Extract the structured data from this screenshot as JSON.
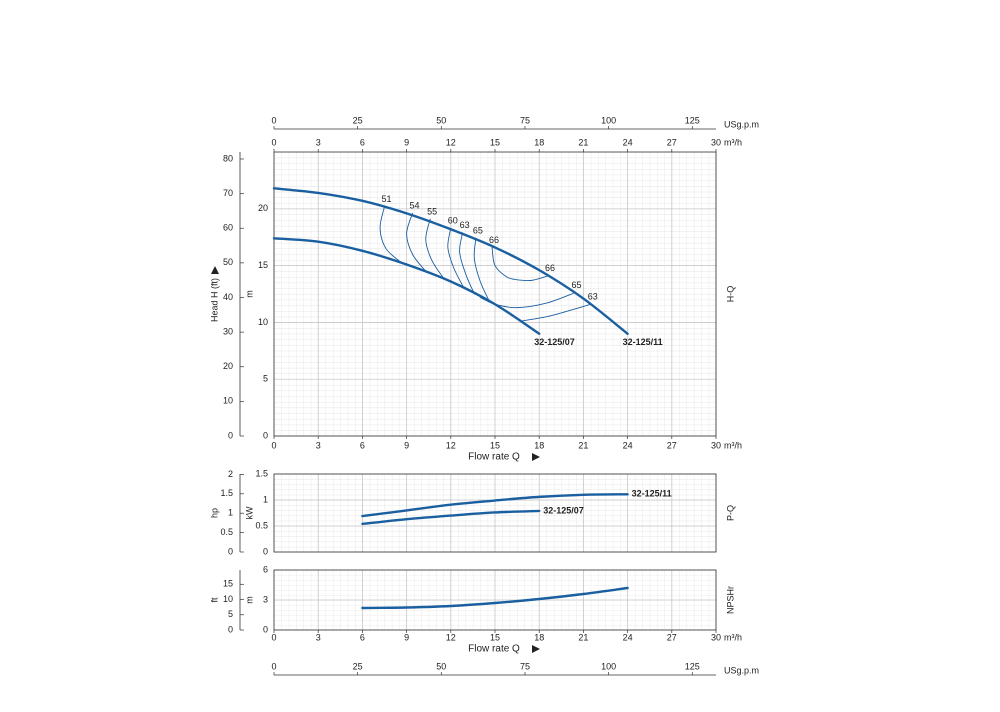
{
  "chart_data": [
    {
      "type": "line",
      "side_label": "H-Q",
      "x_label": "Flow rate Q",
      "x_unit": "m³/h",
      "xlim": [
        0,
        30
      ],
      "xticks": [
        0,
        3,
        6,
        9,
        12,
        15,
        18,
        21,
        24,
        27,
        30
      ],
      "x2_unit": "USg.p.m",
      "x2lim": [
        0,
        132.09
      ],
      "x2ticks": [
        0,
        25,
        50,
        75,
        100,
        125
      ],
      "y_label": "m",
      "ylim": [
        0,
        25
      ],
      "yticks": [
        0,
        5,
        10,
        15,
        20
      ],
      "y2_label": "Head H (ft)",
      "y2lim": [
        0,
        82.02
      ],
      "y2ticks": [
        0,
        10,
        20,
        30,
        40,
        50,
        60,
        70,
        80
      ],
      "grid": true,
      "series": [
        {
          "name": "32-125/11",
          "color": "#1a5fa0",
          "x": [
            0,
            3,
            6,
            9,
            12,
            15,
            18,
            21,
            24
          ],
          "values": [
            21.8,
            21.4,
            20.7,
            19.6,
            18.2,
            16.6,
            14.6,
            12.1,
            9.0
          ]
        },
        {
          "name": "32-125/07",
          "color": "#1a5fa0",
          "x": [
            0,
            3,
            6,
            9,
            12,
            15,
            18
          ],
          "values": [
            17.4,
            17.1,
            16.3,
            15.1,
            13.6,
            11.6,
            9.0
          ]
        }
      ],
      "efficiency_curves": [
        {
          "label": "51",
          "color": "#1a5fa0",
          "x": [
            7.5,
            7.2,
            7.6,
            8.7
          ],
          "values": [
            20.2,
            18.3,
            16.5,
            15.2
          ]
        },
        {
          "label": "54",
          "color": "#1a5fa0",
          "x": [
            9.4,
            9.0,
            9.4,
            10.3
          ],
          "values": [
            19.6,
            17.8,
            16.0,
            14.5
          ]
        },
        {
          "label": "55",
          "color": "#1a5fa0",
          "x": [
            10.6,
            10.3,
            10.7,
            11.5
          ],
          "values": [
            19.1,
            17.3,
            15.5,
            13.9
          ]
        },
        {
          "label": "60",
          "color": "#1a5fa0",
          "x": [
            12.0,
            11.8,
            12.2,
            12.9
          ],
          "values": [
            18.3,
            16.6,
            14.8,
            13.0
          ]
        },
        {
          "label": "63",
          "color": "#1a5fa0",
          "x": [
            12.8,
            12.6,
            13.0,
            13.6
          ],
          "values": [
            17.9,
            16.2,
            14.3,
            12.5
          ]
        },
        {
          "label": "65",
          "color": "#1a5fa0",
          "x": [
            13.7,
            13.6,
            14.0,
            14.6
          ],
          "values": [
            17.4,
            15.6,
            13.6,
            11.9
          ]
        },
        {
          "label": "66",
          "color": "#1a5fa0",
          "x": [
            14.8,
            15.0,
            15.8,
            16.5
          ],
          "values": [
            16.6,
            15.0,
            14.0,
            13.75
          ]
        },
        {
          "label": "66",
          "color": "#1a5fa0",
          "x": [
            16.5,
            17.5,
            18.6
          ],
          "values": [
            13.75,
            13.7,
            14.1
          ]
        },
        {
          "label": "65",
          "color": "#1a5fa0",
          "x": [
            14.0,
            15.0,
            16.5,
            18.5,
            20.4
          ],
          "values": [
            12.2,
            11.6,
            11.3,
            11.7,
            12.6
          ]
        },
        {
          "label": "63",
          "color": "#1a5fa0",
          "x": [
            16.7,
            18.5,
            20.2,
            21.5
          ],
          "values": [
            10.1,
            10.5,
            11.1,
            11.6
          ]
        }
      ]
    },
    {
      "type": "line",
      "side_label": "P-Q",
      "xlim": [
        0,
        30
      ],
      "xticks": [
        0,
        3,
        6,
        9,
        12,
        15,
        18,
        21,
        24,
        27,
        30
      ],
      "y_label": "kW",
      "ylim": [
        0,
        1.5
      ],
      "yticks": [
        0,
        0.5,
        1,
        1.5
      ],
      "y2_label": "hp",
      "y2lim": [
        0,
        2.01
      ],
      "y2ticks": [
        0,
        0.5,
        1,
        1.5,
        2
      ],
      "grid": true,
      "series": [
        {
          "name": "32-125/11",
          "color": "#1a5fa0",
          "x": [
            6,
            9,
            12,
            15,
            18,
            21,
            24
          ],
          "values": [
            0.69,
            0.8,
            0.91,
            0.99,
            1.06,
            1.1,
            1.11
          ]
        },
        {
          "name": "32-125/07",
          "color": "#1a5fa0",
          "x": [
            6,
            9,
            12,
            15,
            18
          ],
          "values": [
            0.54,
            0.63,
            0.7,
            0.76,
            0.79
          ]
        }
      ]
    },
    {
      "type": "line",
      "side_label": "NPSHr",
      "x_label": "Flow rate Q",
      "x_unit": "m³/h",
      "xlim": [
        0,
        30
      ],
      "xticks": [
        0,
        3,
        6,
        9,
        12,
        15,
        18,
        21,
        24,
        27,
        30
      ],
      "x2_unit": "USg.p.m",
      "x2lim": [
        0,
        132.09
      ],
      "x2ticks": [
        0,
        25,
        50,
        75,
        100,
        125
      ],
      "y_label": "m",
      "ylim": [
        0,
        6
      ],
      "yticks": [
        0,
        3,
        6
      ],
      "y2_label": "ft",
      "y2lim": [
        0,
        19.69
      ],
      "y2ticks": [
        0,
        5,
        10,
        15
      ],
      "grid": true,
      "series": [
        {
          "color": "#1a5fa0",
          "x": [
            6,
            9,
            12,
            15,
            18,
            21,
            24
          ],
          "values": [
            2.2,
            2.25,
            2.4,
            2.7,
            3.1,
            3.6,
            4.2
          ]
        }
      ]
    }
  ]
}
